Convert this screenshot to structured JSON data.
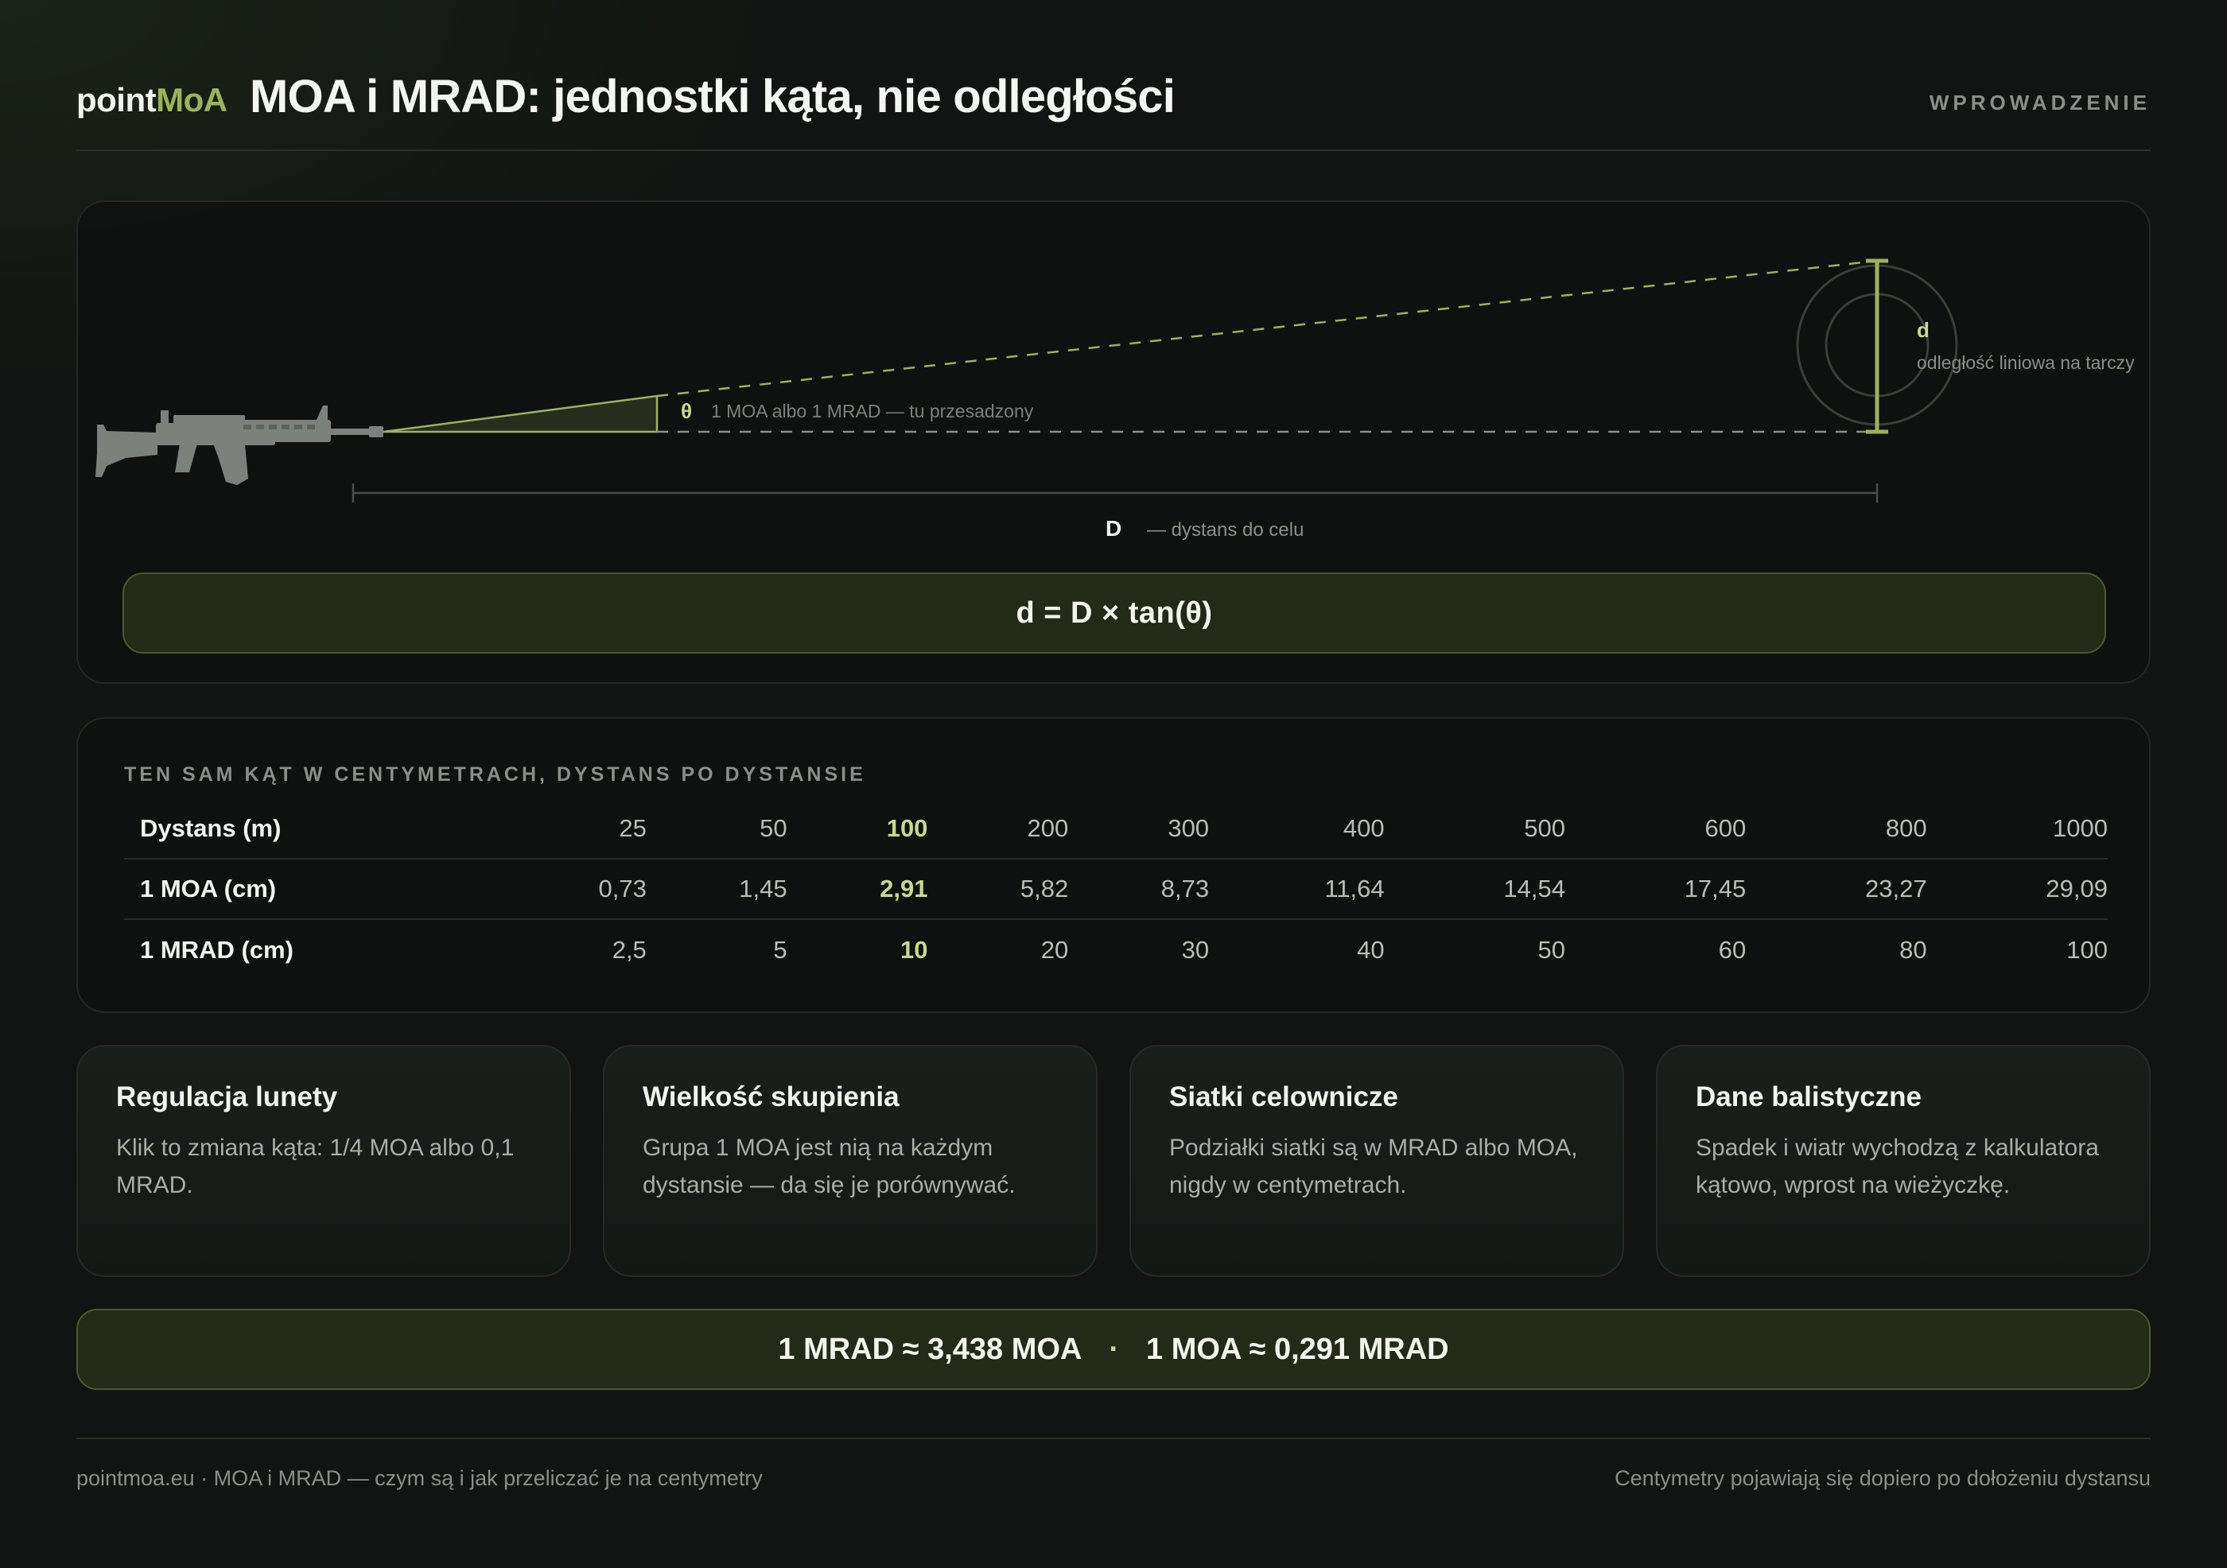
{
  "header": {
    "brand_prefix": "point",
    "brand_accent": "MoA",
    "title": "MOA i MRAD: jednostki kąta, nie odległości",
    "section": "WPROWADZENIE"
  },
  "diagram": {
    "theta_symbol": "θ",
    "angle_note": "1 MOA albo 1 MRAD — tu przesadzony",
    "target_symbol": "d",
    "target_note": "odległość liniowa na tarczy",
    "distance_symbol": "D",
    "distance_note": "— dystans do celu",
    "formula": "d = D × tan(θ)",
    "rifle_icon": "rifle-icon",
    "target_icon": "target-icon"
  },
  "table": {
    "title": "TEN SAM KĄT W CENTYMETRACH, DYSTANS PO DYSTANSIE",
    "rows": [
      {
        "label": "Dystans (m)",
        "values": [
          "25",
          "50",
          "100",
          "200",
          "300",
          "400",
          "500",
          "600",
          "800",
          "1000"
        ]
      },
      {
        "label": "1 MOA (cm)",
        "values": [
          "0,73",
          "1,45",
          "2,91",
          "5,82",
          "8,73",
          "11,64",
          "14,54",
          "17,45",
          "23,27",
          "29,09"
        ]
      },
      {
        "label": "1 MRAD (cm)",
        "values": [
          "2,5",
          "5",
          "10",
          "20",
          "30",
          "40",
          "50",
          "60",
          "80",
          "100"
        ]
      }
    ],
    "highlight_index": 2
  },
  "cards": [
    {
      "title": "Regulacja lunety",
      "text": "Klik to zmiana kąta: 1/4 MOA albo 0,1 MRAD."
    },
    {
      "title": "Wielkość skupienia",
      "text": "Grupa 1 MOA jest nią na każdym dystansie — da się je porównywać."
    },
    {
      "title": "Siatki celownicze",
      "text": "Podziałki siatki są w MRAD albo MOA, nigdy w centymetrach."
    },
    {
      "title": "Dane balistyczne",
      "text": "Spadek i wiatr wychodzą z kalkulatora kątowo, wprost na wieżyczkę."
    }
  ],
  "ratio": {
    "left": "1 MRAD ≈ 3,438 MOA",
    "separator": "·",
    "right": "1 MOA ≈ 0,291 MRAD"
  },
  "footer": {
    "left": "pointmoa.eu · MOA i MRAD — czym są i jak przeliczać je na centymetry",
    "right": "Centymetry pojawiają się dopiero po dołożeniu dystansu"
  },
  "colors": {
    "accent": "#9bb35a",
    "accent_light": "#c9d98c",
    "background": "#111412",
    "formula_bg": "#232a18"
  }
}
